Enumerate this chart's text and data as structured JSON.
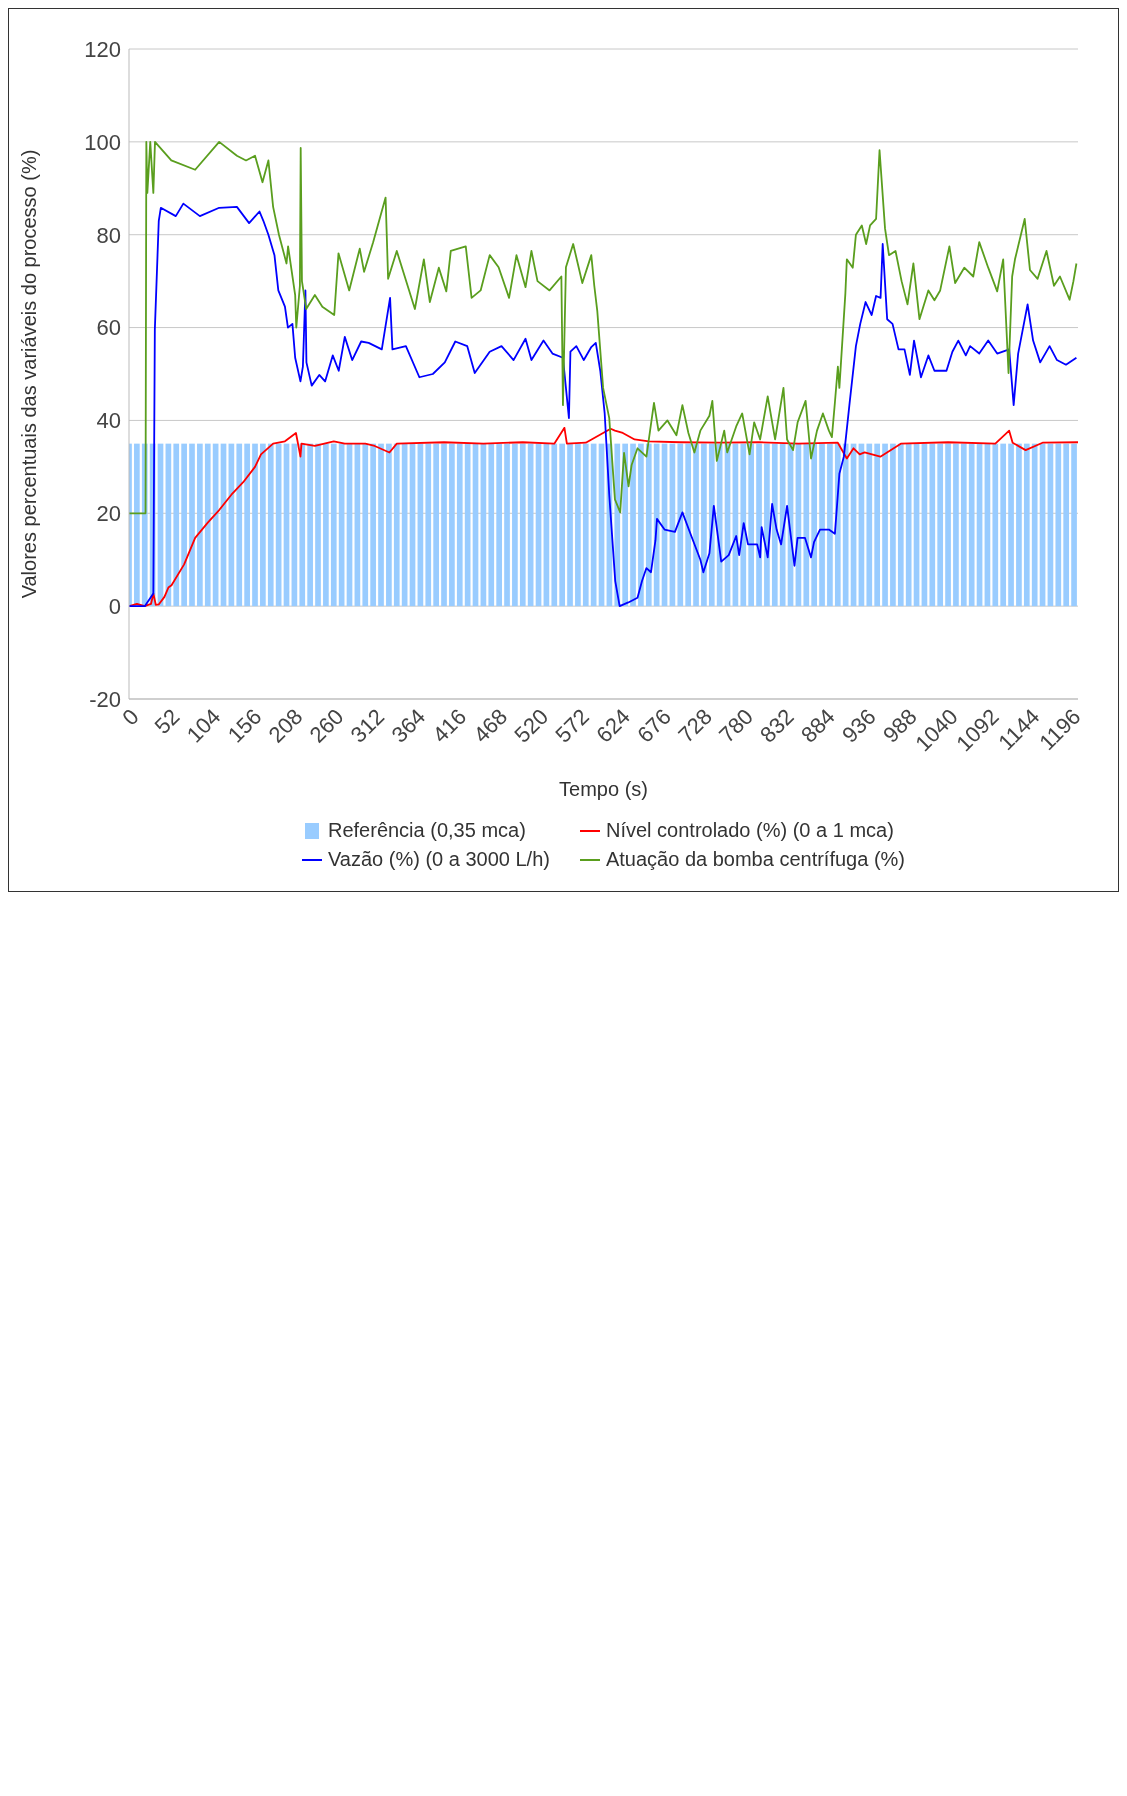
{
  "chart_data": {
    "type": "line",
    "xlabel": "Tempo (s)",
    "ylabel": "Valores percentuais das variáveis do processo (%)",
    "xlim": [
      0,
      1205
    ],
    "xticks": [
      0,
      52,
      104,
      156,
      208,
      260,
      312,
      364,
      416,
      468,
      520,
      572,
      624,
      676,
      728,
      780,
      832,
      884,
      936,
      988,
      1040,
      1092,
      1144,
      1196
    ],
    "ylim": [
      -20,
      120
    ],
    "yticks": [
      -20,
      0,
      20,
      40,
      60,
      80,
      100,
      120
    ],
    "grid": "y",
    "legend": "bottom",
    "marker": "none",
    "line_style": "solid",
    "series": [
      {
        "name": "Referência (0,35 mca)",
        "type": "bar",
        "color": "#99ccff",
        "x": [
          0,
          10,
          20,
          30,
          40,
          50,
          60,
          70,
          80,
          90,
          100,
          110,
          120,
          130,
          140,
          150,
          160,
          170,
          180,
          190,
          200,
          210,
          220,
          230,
          240,
          250,
          260,
          270,
          280,
          290,
          300,
          310,
          320,
          330,
          340,
          350,
          360,
          370,
          380,
          390,
          400,
          410,
          420,
          430,
          440,
          450,
          460,
          470,
          480,
          490,
          500,
          510,
          520,
          530,
          540,
          550,
          560,
          570,
          580,
          590,
          600,
          610,
          620,
          630,
          640,
          650,
          660,
          670,
          680,
          690,
          700,
          710,
          720,
          730,
          740,
          750,
          760,
          770,
          780,
          790,
          800,
          810,
          820,
          830,
          840,
          850,
          860,
          870,
          880,
          890,
          900,
          910,
          920,
          930,
          940,
          950,
          960,
          970,
          980,
          990,
          1000,
          1010,
          1020,
          1030,
          1040,
          1050,
          1060,
          1070,
          1080,
          1090,
          1100,
          1110,
          1120,
          1130,
          1140,
          1150,
          1160,
          1170,
          1180,
          1190,
          1200
        ],
        "values": [
          35,
          35,
          35,
          35,
          35,
          35,
          35,
          35,
          35,
          35,
          35,
          35,
          35,
          35,
          35,
          35,
          35,
          35,
          35,
          35,
          35,
          35,
          35,
          35,
          35,
          35,
          35,
          35,
          35,
          35,
          35,
          35,
          35,
          35,
          35,
          35,
          35,
          35,
          35,
          35,
          35,
          35,
          35,
          35,
          35,
          35,
          35,
          35,
          35,
          35,
          35,
          35,
          35,
          35,
          35,
          35,
          35,
          35,
          35,
          35,
          35,
          35,
          35,
          35,
          35,
          35,
          35,
          35,
          35,
          35,
          35,
          35,
          35,
          35,
          35,
          35,
          35,
          35,
          35,
          35,
          35,
          35,
          35,
          35,
          35,
          35,
          35,
          35,
          35,
          35,
          35,
          35,
          35,
          35,
          35,
          35,
          35,
          35,
          35,
          35,
          35,
          35,
          35,
          35,
          35,
          35,
          35,
          35,
          35,
          35,
          35,
          35,
          35,
          35,
          35,
          35,
          35,
          35,
          35,
          35,
          35
        ]
      },
      {
        "name": "Nível controlado (%) (0 a 1 mca)",
        "color": "#ff0000",
        "x": [
          0,
          10,
          20,
          28,
          31,
          34,
          38,
          45,
          50,
          54,
          70,
          84,
          100,
          114.5,
          130,
          145,
          160,
          167.6,
          183,
          198,
          212,
          217.7,
          219,
          236,
          260,
          274,
          300,
          312,
          330.7,
          340,
          400,
          450,
          500,
          540,
          552.9,
          556,
          580,
          602,
          611.6,
          617,
          627,
          642,
          660,
          700,
          750,
          800,
          850,
          900,
          911.5,
          920,
          927.8,
          934,
          954,
          980,
          1040,
          1100,
          1117.6,
          1122,
          1138.5,
          1160,
          1205
        ],
        "values": [
          0,
          0.5,
          0,
          0.5,
          2.7,
          0.3,
          0.4,
          2,
          4,
          4.5,
          9,
          14.7,
          18,
          20.7,
          24,
          26.7,
          30,
          32.7,
          35,
          35.5,
          37.3,
          32.2,
          35,
          34.5,
          35.5,
          35,
          35,
          34.5,
          33.1,
          35,
          35.3,
          35,
          35.3,
          35,
          38.4,
          35,
          35.2,
          37.3,
          38.2,
          37.8,
          37.3,
          35.9,
          35.5,
          35.3,
          35.2,
          35.3,
          35,
          35.2,
          31.8,
          34,
          32.7,
          33.1,
          32.2,
          35,
          35.3,
          35,
          37.8,
          35.2,
          33.6,
          35.2,
          35.3
        ]
      },
      {
        "name": "Vazão (%) (0 a 3000 L/h)",
        "color": "#0000ff",
        "x": [
          0,
          20,
          30.9,
          32.8,
          37.8,
          40.4,
          59.4,
          69,
          90,
          114.5,
          137,
          152.5,
          165.7,
          170.6,
          177,
          184.7,
          189.6,
          198,
          201.8,
          207.5,
          211,
          217.7,
          220.8,
          224,
          225.3,
          232,
          241.6,
          249,
          258.7,
          266.3,
          274,
          283.4,
          294.8,
          304.3,
          321,
          331.5,
          334.5,
          351.6,
          368.7,
          385.8,
          401,
          414.3,
          429.5,
          439,
          458,
          473,
          488.3,
          503.5,
          511,
          526.3,
          537.7,
          551,
          558.6,
          560.5,
          568,
          577.5,
          587,
          592.7,
          598.4,
          604,
          609.8,
          617.4,
          623,
          634,
          645.7,
          651.4,
          657,
          662.8,
          668.5,
          670.4,
          680,
          693.2,
          702.7,
          714,
          725.5,
          729.3,
          737,
          742.6,
          752,
          761.5,
          771,
          774.8,
          780.5,
          786,
          797.6,
          801.4,
          803.3,
          811,
          816.6,
          822.3,
          828,
          835.6,
          845,
          848.9,
          858.4,
          866,
          869.8,
          877.4,
          888.7,
          896.3,
          898.2,
          902,
          907.7,
          915.3,
          923,
          928.5,
          935.3,
          943,
          948.6,
          954.3,
          957,
          962.7,
          969.5,
          977.1,
          984.7,
          991.5,
          996.8,
          1005.6,
          1015,
          1022.7,
          1038,
          1045.5,
          1053,
          1062.5,
          1068,
          1079.6,
          1091,
          1102.4,
          1117.6,
          1123.3,
          1129,
          1141,
          1148,
          1157,
          1168.9,
          1178.3,
          1189.7,
          1203
        ],
        "values": [
          0,
          0,
          2.7,
          59.5,
          83,
          85.8,
          84,
          86.7,
          84,
          85.8,
          86,
          82.5,
          85,
          83,
          80,
          75.6,
          68,
          64.5,
          60,
          60.8,
          53.5,
          48.4,
          51.6,
          68,
          52.5,
          47.5,
          49.8,
          48.4,
          54,
          50.7,
          58,
          53,
          57,
          56.7,
          55.3,
          66.4,
          55.3,
          56,
          49.3,
          50,
          52.5,
          57,
          56,
          50.2,
          54.8,
          56,
          53,
          57.6,
          53,
          57.2,
          54.4,
          53.5,
          40.5,
          54.8,
          56,
          53,
          55.8,
          56.7,
          50.7,
          41.5,
          24,
          5.4,
          0,
          0.8,
          1.8,
          5.4,
          8.2,
          7.3,
          14.2,
          18.8,
          16.5,
          16,
          20.2,
          15.1,
          10,
          7.3,
          11.4,
          21.6,
          9.6,
          11,
          15.1,
          11,
          17.9,
          13.3,
          13.3,
          10.5,
          17,
          10.5,
          22,
          16.5,
          13.3,
          21.6,
          8.7,
          14.7,
          14.7,
          10.5,
          13.8,
          16.5,
          16.5,
          15.6,
          19.8,
          28.5,
          32.2,
          44.2,
          56,
          60.8,
          65.5,
          62.7,
          66.8,
          66.4,
          78,
          61.8,
          60.8,
          55.3,
          55.3,
          49.8,
          57.2,
          49.3,
          54,
          50.7,
          50.7,
          54.8,
          57.2,
          54,
          56,
          54.4,
          57.2,
          54.4,
          55.3,
          43.3,
          54.4,
          65,
          57.2,
          52.5,
          56,
          53,
          52,
          53.5
        ]
      },
      {
        "name": "Atuação da bomba centrífuga (%)",
        "color": "#5a9e1e",
        "x": [
          0,
          21,
          22,
          23.3,
          27,
          30.9,
          33,
          53.7,
          84,
          114.5,
          137,
          148.6,
          160,
          169.5,
          177,
          183,
          190.4,
          200,
          202,
          211,
          212.4,
          217,
          218,
          219.6,
          225,
          236,
          245.5,
          260.6,
          266,
          279.6,
          293,
          298.5,
          310,
          325.8,
          329,
          340,
          363,
          374.4,
          382,
          393.4,
          402.9,
          408.6,
          427.6,
          435,
          446.5,
          458,
          469.3,
          482.6,
          492,
          503.5,
          511,
          518.7,
          534,
          549,
          551,
          554.8,
          564,
          575.6,
          587,
          590.8,
          594.6,
          602,
          609.8,
          617,
          623.7,
          628.6,
          634.3,
          638.2,
          645.7,
          657,
          666.6,
          672.3,
          683.7,
          695.1,
          702.7,
          710.3,
          717.9,
          725.5,
          737,
          740.7,
          746.4,
          755.8,
          759.6,
          771,
          778.6,
          788,
          793.8,
          801.4,
          811,
          820.4,
          831,
          835.6,
          843.2,
          849,
          859.1,
          866,
          873.6,
          881.1,
          888.7,
          892.5,
          896.3,
          900.1,
          902,
          909.6,
          911.5,
          919,
          923,
          930.5,
          936,
          941,
          948.6,
          953,
          960,
          965,
          973.3,
          981,
          988.5,
          996,
          1003.7,
          1015,
          1022.7,
          1030,
          1041.7,
          1049,
          1060.6,
          1072,
          1079.6,
          1091,
          1102.4,
          1110,
          1116.8,
          1121.4,
          1125,
          1137.3,
          1144,
          1153.7,
          1165,
          1174.5,
          1182.1,
          1194.3,
          1199.2,
          1203
        ],
        "values": [
          20,
          20,
          100,
          89,
          100,
          89,
          100,
          96,
          94,
          100,
          97,
          96,
          97,
          91.3,
          96,
          86,
          80,
          73.8,
          77.5,
          67,
          60,
          69,
          98.7,
          70,
          64,
          67,
          64.5,
          62.7,
          76,
          68,
          77,
          72,
          78.4,
          88,
          70.5,
          76.5,
          64,
          74.7,
          65.5,
          72.9,
          67.8,
          76.5,
          77.5,
          66.4,
          68,
          75.6,
          73,
          66.4,
          75.6,
          68.7,
          76.5,
          70,
          68,
          71,
          43.3,
          73,
          78,
          69.6,
          75.6,
          69,
          63.6,
          47,
          40.5,
          23,
          20.2,
          33,
          25.8,
          30.4,
          34,
          32.2,
          43.8,
          37.8,
          40,
          36.8,
          43.3,
          37.3,
          33.1,
          37.8,
          41,
          44.2,
          31.3,
          37.8,
          33.1,
          38.7,
          41.5,
          32.7,
          39.6,
          35.9,
          45.2,
          35.9,
          47,
          35.9,
          33.6,
          39.6,
          44.2,
          31.8,
          37.8,
          41.5,
          37.8,
          36.4,
          43.8,
          51.6,
          47,
          67.3,
          74.7,
          72.9,
          80,
          82,
          78,
          82,
          83.4,
          98.2,
          81.3,
          75.6,
          76.5,
          70,
          65,
          73.8,
          61.8,
          68,
          65.9,
          68,
          77.5,
          69.6,
          72.9,
          71,
          78.4,
          72.9,
          67.8,
          74.7,
          50.2,
          71,
          74.7,
          83.4,
          72.4,
          70.5,
          76.5,
          69,
          71,
          66,
          70,
          73.8
        ]
      }
    ]
  }
}
